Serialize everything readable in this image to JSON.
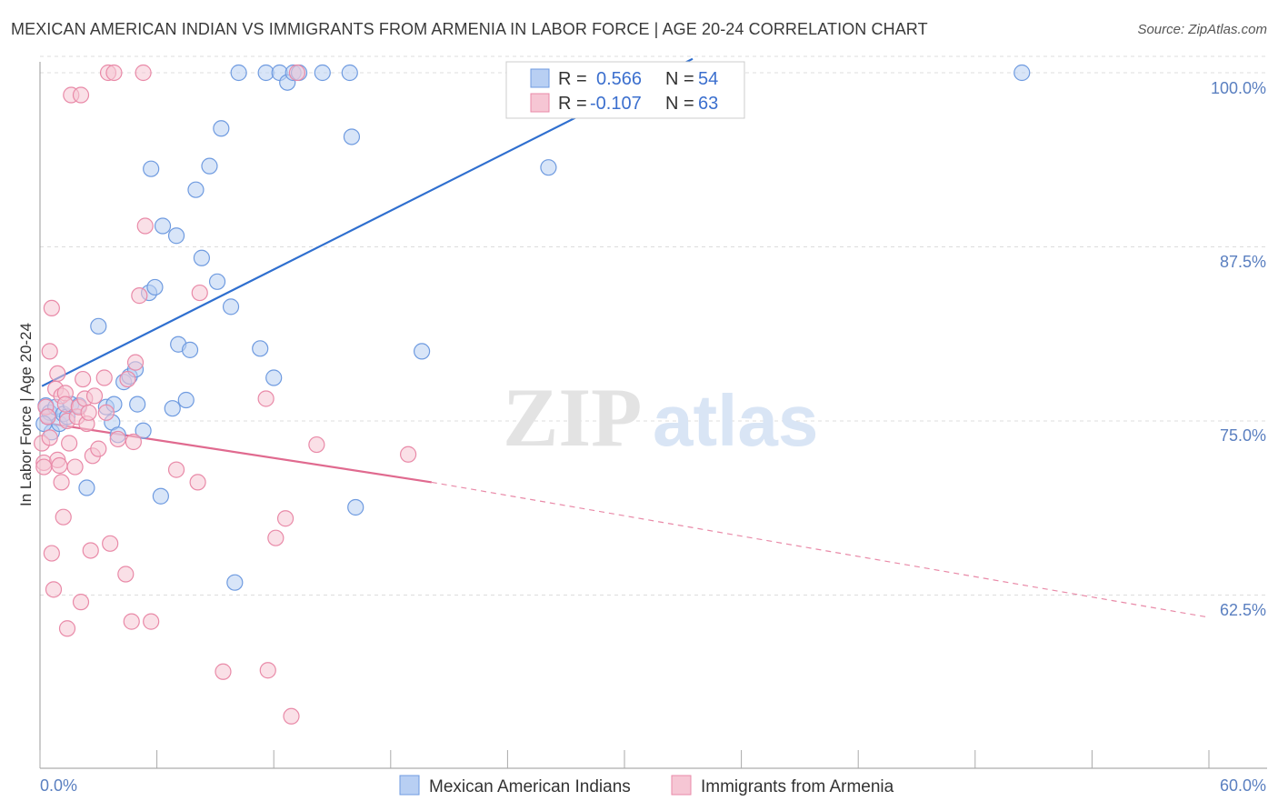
{
  "title": "MEXICAN AMERICAN INDIAN VS IMMIGRANTS FROM ARMENIA IN LABOR FORCE | AGE 20-24 CORRELATION CHART",
  "source": "Source: ZipAtlas.com",
  "watermark": {
    "zip": "ZIP",
    "atlas": "atlas"
  },
  "chart_data": {
    "type": "scatter",
    "xlabel": "",
    "ylabel": "In Labor Force | Age 20-24",
    "xlim": [
      0,
      60
    ],
    "ylim": [
      50,
      101
    ],
    "x_tick_labels": [
      "0.0%",
      "60.0%"
    ],
    "y_ticks": [
      62.5,
      75.0,
      87.5,
      100.0
    ],
    "y_tick_labels": [
      "62.5%",
      "75.0%",
      "87.5%",
      "100.0%"
    ],
    "legend": [
      {
        "r_label": "R =",
        "r_value": "0.566",
        "n_label": "N =",
        "n_value": "54"
      },
      {
        "r_label": "R =",
        "r_value": "-0.107",
        "n_label": "N =",
        "n_value": "63"
      }
    ],
    "series": [
      {
        "name": "Mexican American Indians",
        "color": "#6f9be0",
        "fill": "#b8cff3",
        "trend": {
          "x0": 0.1,
          "y0": 77.5,
          "x1": 33.5,
          "y1": 101.0
        },
        "points": [
          [
            0.3,
            76.1
          ],
          [
            0.4,
            75.3
          ],
          [
            0.5,
            75.6
          ],
          [
            0.6,
            74.2
          ],
          [
            0.8,
            76.0
          ],
          [
            1.0,
            74.8
          ],
          [
            1.2,
            75.5
          ],
          [
            1.4,
            75.3
          ],
          [
            1.6,
            76.2
          ],
          [
            2.0,
            76.1
          ],
          [
            2.4,
            70.2
          ],
          [
            3.0,
            81.8
          ],
          [
            3.4,
            76.0
          ],
          [
            3.7,
            74.9
          ],
          [
            3.8,
            76.2
          ],
          [
            4.0,
            74.0
          ],
          [
            4.3,
            77.8
          ],
          [
            4.6,
            78.2
          ],
          [
            4.9,
            78.7
          ],
          [
            5.0,
            76.2
          ],
          [
            5.3,
            74.3
          ],
          [
            5.6,
            84.2
          ],
          [
            5.7,
            93.1
          ],
          [
            5.9,
            84.6
          ],
          [
            6.2,
            69.6
          ],
          [
            6.3,
            89.0
          ],
          [
            6.8,
            75.9
          ],
          [
            7.0,
            88.3
          ],
          [
            7.1,
            80.5
          ],
          [
            7.5,
            76.5
          ],
          [
            7.7,
            80.1
          ],
          [
            8.0,
            91.6
          ],
          [
            8.3,
            86.7
          ],
          [
            8.7,
            93.3
          ],
          [
            9.1,
            85.0
          ],
          [
            9.3,
            96.0
          ],
          [
            9.8,
            83.2
          ],
          [
            10.0,
            63.4
          ],
          [
            10.2,
            100.0
          ],
          [
            11.3,
            80.2
          ],
          [
            11.6,
            100.0
          ],
          [
            12.0,
            78.1
          ],
          [
            12.3,
            100.0
          ],
          [
            12.7,
            99.3
          ],
          [
            13.0,
            100.0
          ],
          [
            13.3,
            100.0
          ],
          [
            14.5,
            100.0
          ],
          [
            15.9,
            100.0
          ],
          [
            16.0,
            95.4
          ],
          [
            16.2,
            68.8
          ],
          [
            19.6,
            80.0
          ],
          [
            26.1,
            93.2
          ],
          [
            50.4,
            100.0
          ],
          [
            0.2,
            74.8
          ]
        ]
      },
      {
        "name": "Immigrants from Armenia",
        "color": "#e98aa8",
        "fill": "#f6c6d4",
        "trend": {
          "x0": 0.1,
          "y0": 74.9,
          "x1": 20.1,
          "y1": 70.6
        },
        "trend_dashed": {
          "x0": 20.1,
          "y0": 70.6,
          "x1": 60.0,
          "y1": 60.9
        },
        "points": [
          [
            0.1,
            73.4
          ],
          [
            0.2,
            72.0
          ],
          [
            0.3,
            76.0
          ],
          [
            0.4,
            75.3
          ],
          [
            0.5,
            73.8
          ],
          [
            0.5,
            80.0
          ],
          [
            0.6,
            65.5
          ],
          [
            0.6,
            83.1
          ],
          [
            0.7,
            62.9
          ],
          [
            0.8,
            77.3
          ],
          [
            0.9,
            78.4
          ],
          [
            0.9,
            72.2
          ],
          [
            1.0,
            71.8
          ],
          [
            1.1,
            76.8
          ],
          [
            1.1,
            70.6
          ],
          [
            1.2,
            68.1
          ],
          [
            1.3,
            77.0
          ],
          [
            1.3,
            76.2
          ],
          [
            1.4,
            75.0
          ],
          [
            1.4,
            60.1
          ],
          [
            1.5,
            73.4
          ],
          [
            1.6,
            98.4
          ],
          [
            1.8,
            71.7
          ],
          [
            1.9,
            75.3
          ],
          [
            2.0,
            76.0
          ],
          [
            2.1,
            62.0
          ],
          [
            2.1,
            98.4
          ],
          [
            2.2,
            78.0
          ],
          [
            2.3,
            76.6
          ],
          [
            2.4,
            74.8
          ],
          [
            2.5,
            75.6
          ],
          [
            2.6,
            65.7
          ],
          [
            2.7,
            72.5
          ],
          [
            2.8,
            76.8
          ],
          [
            3.0,
            73.0
          ],
          [
            3.3,
            78.1
          ],
          [
            3.4,
            75.6
          ],
          [
            3.5,
            100.0
          ],
          [
            3.6,
            66.2
          ],
          [
            3.8,
            100.0
          ],
          [
            4.0,
            73.7
          ],
          [
            4.4,
            64.0
          ],
          [
            4.5,
            78.0
          ],
          [
            4.7,
            60.6
          ],
          [
            4.8,
            73.5
          ],
          [
            4.9,
            79.2
          ],
          [
            5.1,
            84.0
          ],
          [
            5.3,
            100.0
          ],
          [
            5.4,
            89.0
          ],
          [
            5.7,
            60.6
          ],
          [
            7.0,
            71.5
          ],
          [
            8.1,
            70.6
          ],
          [
            8.2,
            84.2
          ],
          [
            9.4,
            57.0
          ],
          [
            11.6,
            76.6
          ],
          [
            11.7,
            57.1
          ],
          [
            12.1,
            66.6
          ],
          [
            12.6,
            68.0
          ],
          [
            12.9,
            53.8
          ],
          [
            13.2,
            100.0
          ],
          [
            14.2,
            73.3
          ],
          [
            18.9,
            72.6
          ],
          [
            0.2,
            71.7
          ]
        ]
      }
    ]
  }
}
